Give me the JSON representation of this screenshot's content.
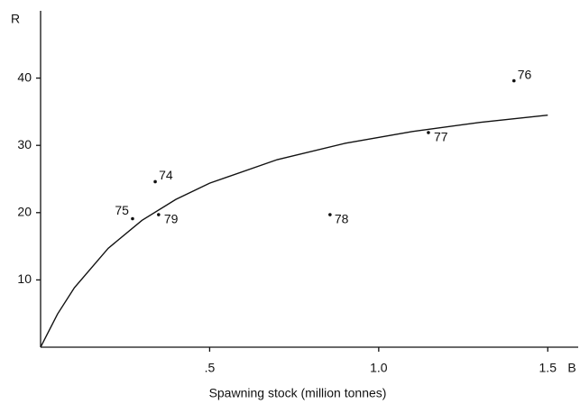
{
  "chart_data": {
    "type": "scatter",
    "x_label": "Spawning stock (million tonnes)",
    "x_axis_name": "B",
    "y_label": "R",
    "xlim": [
      0,
      1.59
    ],
    "ylim": [
      0,
      50
    ],
    "xticks": [
      {
        "value": 0.5,
        "label": ".5"
      },
      {
        "value": 1.0,
        "label": "1.0"
      },
      {
        "value": 1.5,
        "label": "1.5"
      }
    ],
    "yticks": [
      10,
      20,
      30,
      40
    ],
    "grid": false,
    "color": "#111111",
    "series": [
      {
        "labels": [
          "74",
          "75",
          "79",
          "78",
          "77",
          "76"
        ],
        "x": [
          0.339,
          0.272,
          0.349,
          0.856,
          1.147,
          1.4
        ],
        "values": [
          24.6,
          19.1,
          19.7,
          19.7,
          31.9,
          39.6
        ]
      }
    ],
    "curve": {
      "x": [
        0,
        0.05,
        0.1,
        0.2,
        0.3,
        0.4,
        0.5,
        0.7,
        0.9,
        1.1,
        1.3,
        1.5
      ],
      "values": [
        0,
        4.92,
        8.84,
        14.7,
        18.86,
        21.97,
        24.38,
        27.88,
        30.3,
        32.07,
        33.42,
        34.49
      ]
    }
  }
}
